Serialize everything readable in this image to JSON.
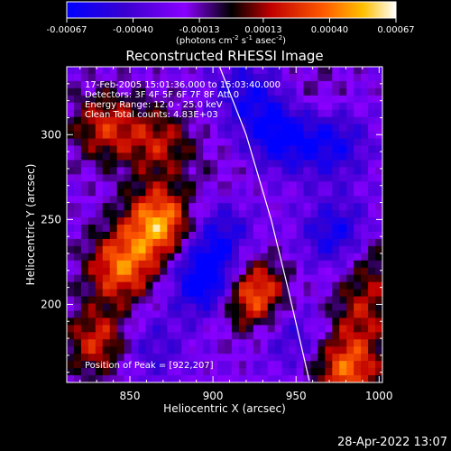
{
  "chart_data": {
    "type": "heatmap",
    "title": "Reconstructed RHESSI Image",
    "xlabel": "Heliocentric X (arcsec)",
    "ylabel": "Heliocentric Y (arcsec)",
    "xlim": [
      812,
      1002
    ],
    "ylim": [
      154,
      340
    ],
    "x_ticks": [
      850,
      900,
      950,
      1000
    ],
    "y_ticks": [
      200,
      250,
      300
    ],
    "x_tick_labels": [
      "850",
      "900",
      "950",
      "1000"
    ],
    "y_tick_labels": [
      "200",
      "250",
      "300"
    ],
    "colorbar": {
      "range": [
        -0.00067,
        0.00067
      ],
      "ticks": [
        -0.00067,
        -0.0004,
        -0.00013,
        0.00013,
        0.0004,
        0.00067
      ],
      "tick_labels": [
        "-0.00067",
        "-0.00040",
        "-0.00013",
        "0.00013",
        "0.00040",
        "0.00067"
      ],
      "units_prefix": "(photons cm",
      "units_exp1": "-2",
      "units_mid": " s",
      "units_exp2": "-1",
      "units_end": " asec",
      "units_exp3": "-2",
      "units_close": ")"
    },
    "colors": [
      "#0000ff",
      "#4000c0",
      "#8000ff",
      "#000000",
      "#cc0000",
      "#ff6600",
      "#ffcc00",
      "#ffffff"
    ],
    "annotations": [
      "17-Feb-2005 15:01:36.000 to 15:03:40.000",
      "Detectors: 3F 4F 5F 6F 7F 8F  Att 0",
      "Energy Range: 12.0 - 25.0 keV",
      "Clean     Total counts: 4.83E+03"
    ],
    "peak_label": "Position of Peak = [922,207]",
    "peak": [
      922,
      207
    ],
    "limb_curve": [
      [
        904,
        340
      ],
      [
        920,
        300
      ],
      [
        935,
        250
      ],
      [
        945,
        210
      ],
      [
        958,
        155
      ]
    ],
    "hotspots": [
      {
        "x": 868,
        "y": 248,
        "value": 0.00067
      },
      {
        "x": 845,
        "y": 222,
        "value": 0.00055
      },
      {
        "x": 922,
        "y": 207,
        "value": 0.00067
      },
      {
        "x": 832,
        "y": 178,
        "value": 0.00045
      },
      {
        "x": 980,
        "y": 162,
        "value": 0.00055
      },
      {
        "x": 990,
        "y": 195,
        "value": 0.0003
      },
      {
        "x": 835,
        "y": 305,
        "value": 0.0004
      },
      {
        "x": 868,
        "y": 295,
        "value": 0.00035
      },
      {
        "x": 910,
        "y": 272,
        "value": 0.0001
      },
      {
        "x": 960,
        "y": 322,
        "value": 0.00015
      },
      {
        "x": 995,
        "y": 225,
        "value": 0.00025
      }
    ],
    "coldspots": [
      {
        "x": 898,
        "y": 215,
        "value": -0.00067
      },
      {
        "x": 940,
        "y": 300,
        "value": -0.00045
      },
      {
        "x": 975,
        "y": 240,
        "value": -0.0004
      },
      {
        "x": 972,
        "y": 295,
        "value": -0.00035
      },
      {
        "x": 905,
        "y": 245,
        "value": -0.0003
      },
      {
        "x": 920,
        "y": 325,
        "value": -0.0003
      },
      {
        "x": 860,
        "y": 175,
        "value": -0.00025
      },
      {
        "x": 950,
        "y": 180,
        "value": -0.00025
      }
    ]
  },
  "timestamp": "28-Apr-2022 13:07"
}
